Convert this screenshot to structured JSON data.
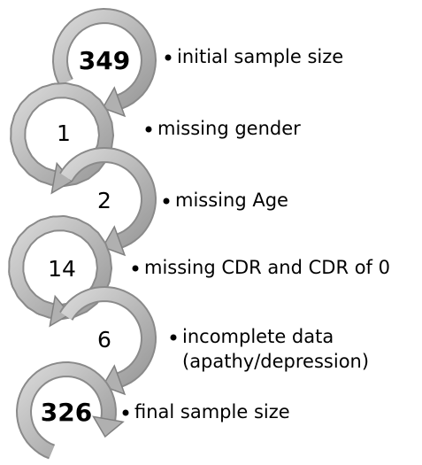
{
  "nodes": [
    {
      "value": "349",
      "label": [
        "initial sample size"
      ]
    },
    {
      "value": "1",
      "label": [
        "missing gender"
      ]
    },
    {
      "value": "2",
      "label": [
        "missing Age"
      ]
    },
    {
      "value": "14",
      "label": [
        "missing CDR and CDR of 0"
      ]
    },
    {
      "value": "6",
      "label": [
        "incomplete data",
        "(apathy/depression)"
      ]
    },
    {
      "value": "326",
      "label": [
        "final sample size"
      ]
    }
  ]
}
